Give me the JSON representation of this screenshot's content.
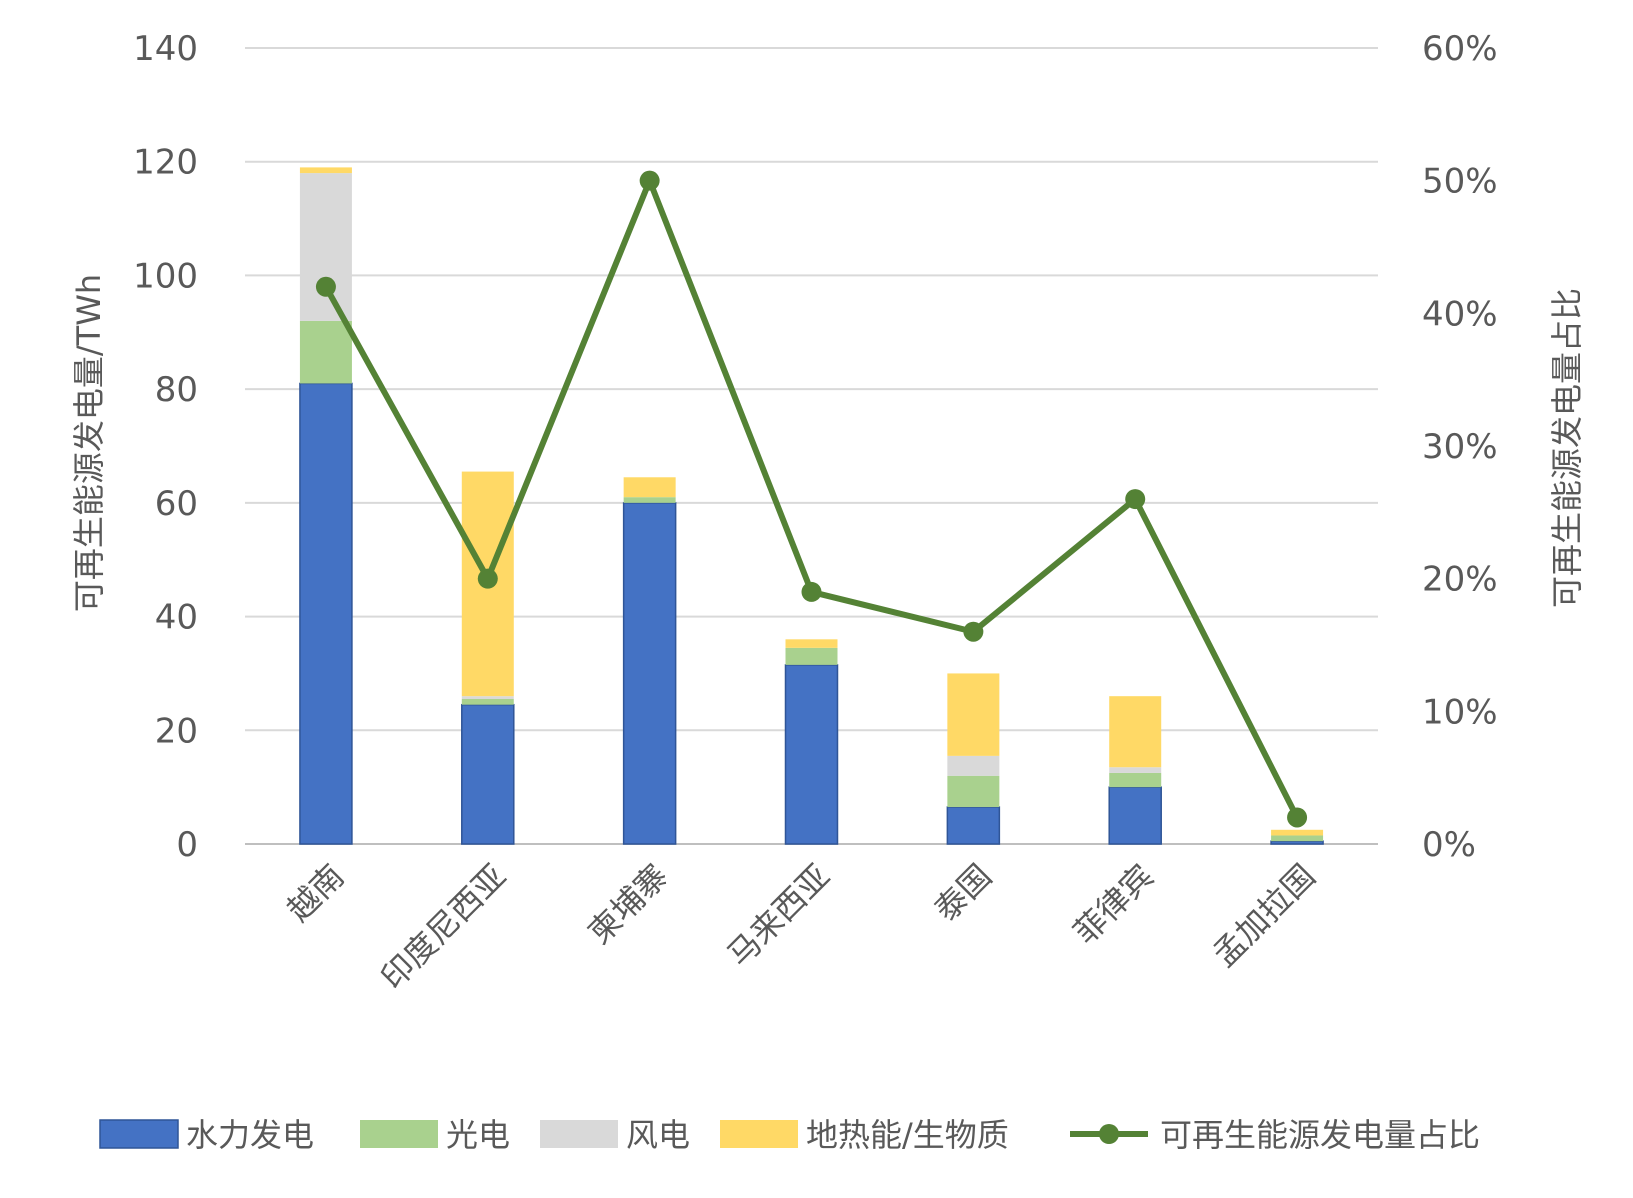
{
  "chart_data": {
    "type": "bar",
    "stacked": true,
    "categories": [
      "越南",
      "印度尼西亚",
      "柬埔寨",
      "马来西亚",
      "泰国",
      "菲律宾",
      "孟加拉国"
    ],
    "series": [
      {
        "name": "水力发电",
        "type": "bar",
        "axis": "left",
        "color": "#4472C4",
        "values": [
          81,
          24.5,
          60,
          31.5,
          6.5,
          10,
          0.5
        ]
      },
      {
        "name": "光电",
        "type": "bar",
        "axis": "left",
        "color": "#A9D18E",
        "values": [
          11,
          1,
          1,
          3,
          5.5,
          2.5,
          1
        ]
      },
      {
        "name": "风电",
        "type": "bar",
        "axis": "left",
        "color": "#D9D9D9",
        "values": [
          26,
          0.5,
          0,
          0,
          3.5,
          1,
          0
        ]
      },
      {
        "name": "地热能/生物质",
        "type": "bar",
        "axis": "left",
        "color": "#FFD966",
        "values": [
          1,
          39.5,
          3.5,
          1.5,
          14.5,
          12.5,
          1
        ]
      },
      {
        "name": "可再生能源发电量占比",
        "type": "line",
        "axis": "right",
        "color": "#548235",
        "values": [
          0.42,
          0.2,
          0.5,
          0.19,
          0.16,
          0.26,
          0.02
        ]
      }
    ],
    "ylabel": "可再生能源发电量/TWh",
    "y2label": "可再生能源发电量占比",
    "ylim": [
      0,
      140
    ],
    "yticks": [
      "0",
      "20",
      "40",
      "60",
      "80",
      "100",
      "120",
      "140"
    ],
    "y2lim": [
      0,
      0.6
    ],
    "y2ticks": [
      "0%",
      "10%",
      "20%",
      "30%",
      "40%",
      "50%",
      "60%"
    ],
    "grid": true,
    "legend_position": "bottom"
  }
}
